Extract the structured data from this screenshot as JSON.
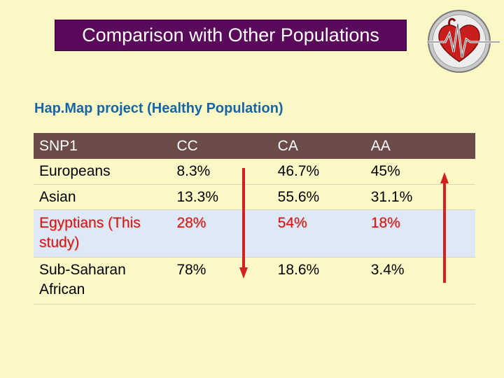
{
  "slide": {
    "title": "Comparison with Other Populations",
    "subtitle": "Hap.Map project (Healthy Population)",
    "logo_icon": "heart-ecg-icon"
  },
  "table": {
    "headers": [
      "SNP1",
      "CC",
      "CA",
      "AA"
    ],
    "rows": [
      {
        "population": "Europeans",
        "cc": "8.3%",
        "ca": "46.7%",
        "aa": "45%"
      },
      {
        "population": "Asian",
        "cc": "13.3%",
        "ca": "55.6%",
        "aa": "31.1%"
      },
      {
        "population": "Egyptians (This study)",
        "cc": "28%",
        "ca": "54%",
        "aa": "18%"
      },
      {
        "population": "Sub-Saharan African",
        "cc": "78%",
        "ca": "18.6%",
        "aa": "3.4%"
      }
    ]
  },
  "colors": {
    "background": "#fbf8c6",
    "title_bg": "#5a0a5a",
    "header_bg": "#6b4c48",
    "highlight_bg": "#dfe8f6",
    "highlight_text": "#dd1111",
    "subtitle_text": "#1565a8",
    "arrow": "#d42020"
  }
}
